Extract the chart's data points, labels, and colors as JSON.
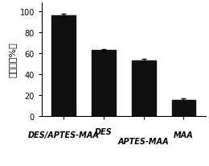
{
  "x_positions": [
    0,
    1,
    2,
    3
  ],
  "values": [
    95.5,
    62.5,
    53.0,
    15.5
  ],
  "errors": [
    2.0,
    1.5,
    1.5,
    1.5
  ],
  "bar_color": "#111111",
  "bar_width": 0.6,
  "ylabel": "回收率（%）",
  "ylim": [
    0,
    108
  ],
  "yticks": [
    0,
    20,
    40,
    60,
    80,
    100
  ],
  "background_color": "#ffffff",
  "tick_label_fontsize": 7.0,
  "ylabel_fontsize": 8.0,
  "error_cap_size": 2.5,
  "error_linewidth": 1.0,
  "x_label_0": "DES/APTES-MAA",
  "x_label_1": "DES",
  "x_label_2": "APTES-MAA",
  "x_label_3": "MAA"
}
